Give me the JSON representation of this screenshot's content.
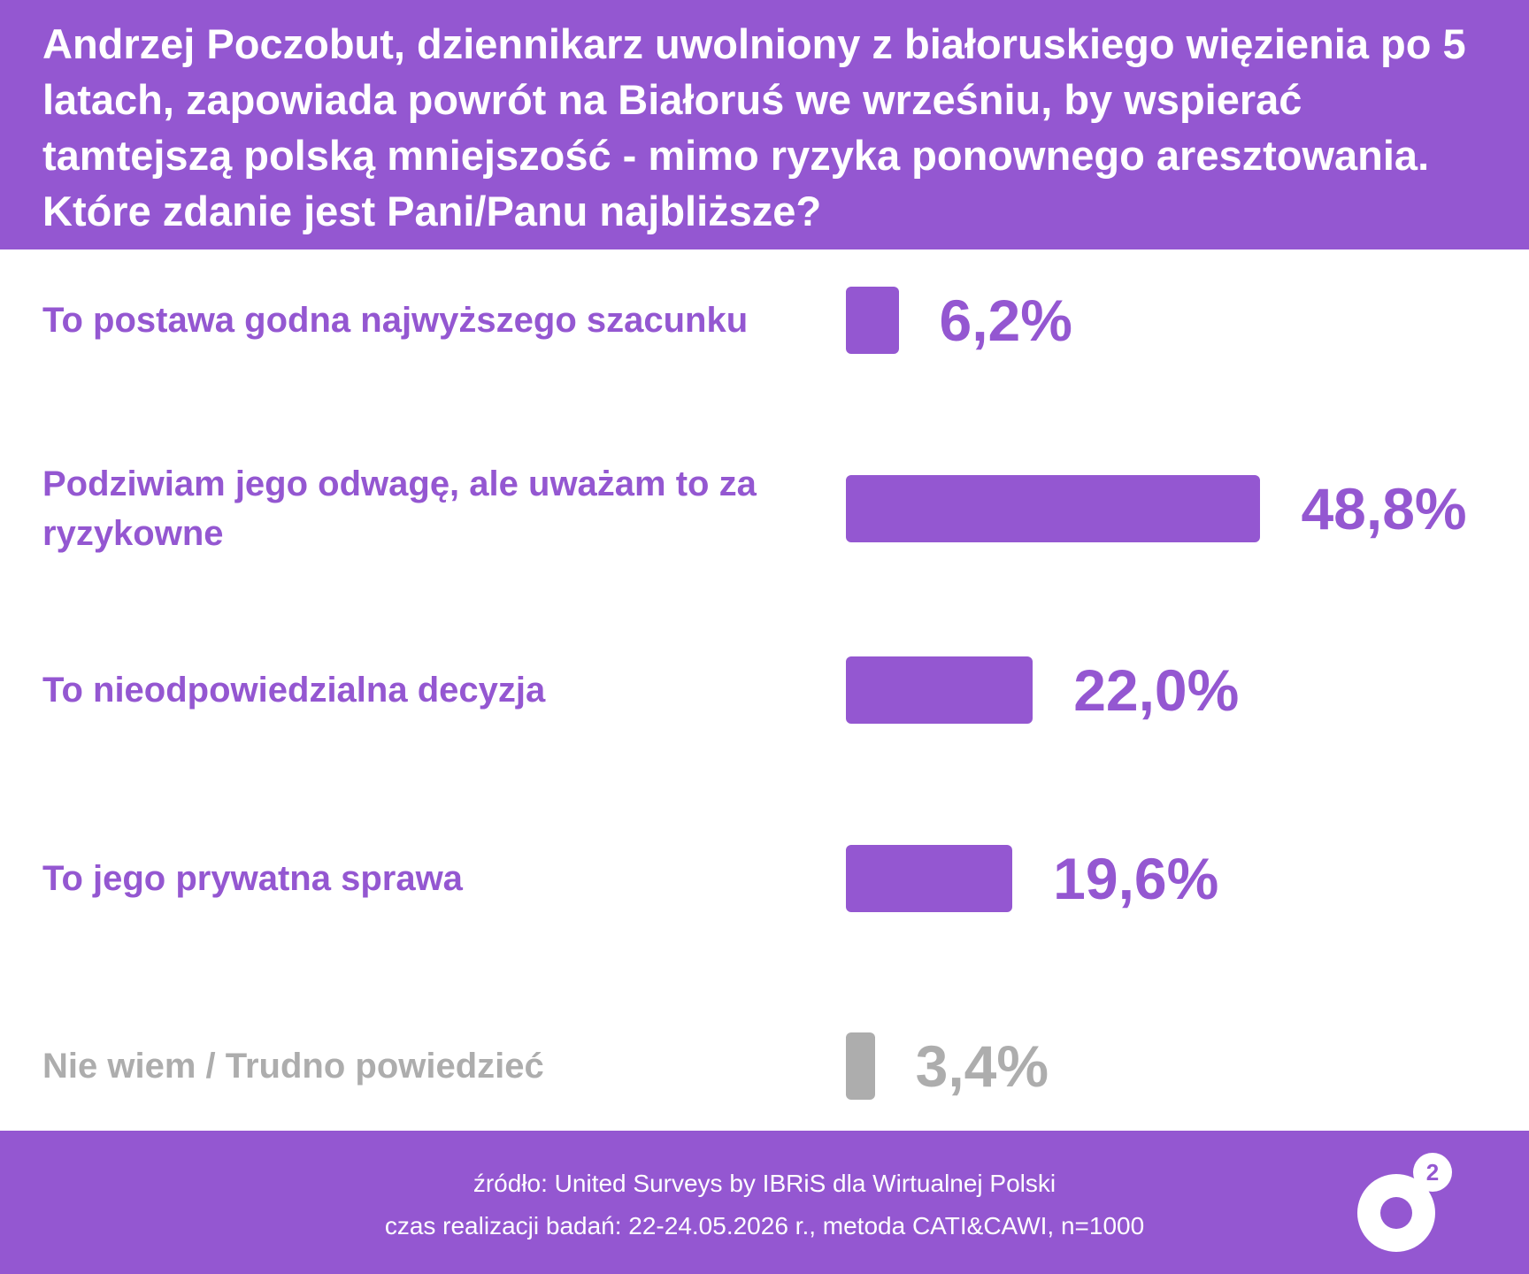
{
  "header": {
    "title": "Andrzej Poczobut, dziennikarz uwolniony z białoruskiego więzienia po 5 latach, zapowiada powrót na Białoruś we wrześniu, by wspierać tamtejszą polską mniejszość - mimo ryzyka ponownego aresztowania. Które zdanie jest Pani/Panu najbliższe?"
  },
  "chart_data": {
    "type": "bar",
    "orientation": "horizontal",
    "title": "Andrzej Poczobut, dziennikarz uwolniony z białoruskiego więzienia po 5 latach, zapowiada powrót na Białoruś we wrześniu, by wspierać tamtejszą polską mniejszość - mimo ryzyka ponownego aresztowania. Które zdanie jest Pani/Panu najbliższe?",
    "categories": [
      "To postawa godna najwyższego szacunku",
      "Podziwiam jego odwagę, ale uważam to za ryzykowne",
      "To nieodpowiedzialna decyzja",
      "To jego prywatna sprawa",
      "Nie wiem / Trudno powiedzieć"
    ],
    "values": [
      6.2,
      48.8,
      22.0,
      19.6,
      3.4
    ],
    "value_labels": [
      "6,2%",
      "48,8%",
      "22,0%",
      "19,6%",
      "3,4%"
    ],
    "unit": "%",
    "colors": [
      "#9457D1",
      "#9457D1",
      "#9457D1",
      "#9457D1",
      "#ADADAD"
    ],
    "grid": false,
    "legend": "none"
  },
  "colors": {
    "accent": "#9457D1",
    "muted": "#ADADAD",
    "background": "#FFFFFF"
  },
  "footer": {
    "source": "źródło: United Surveys by IBRiS dla Wirtualnej Polski",
    "method": "czas realizacji badań: 22-24.05.2026 r., metoda CATI&CAWI, n=1000",
    "logo_superscript": "2",
    "logo_icon": "o2-logo-icon"
  }
}
